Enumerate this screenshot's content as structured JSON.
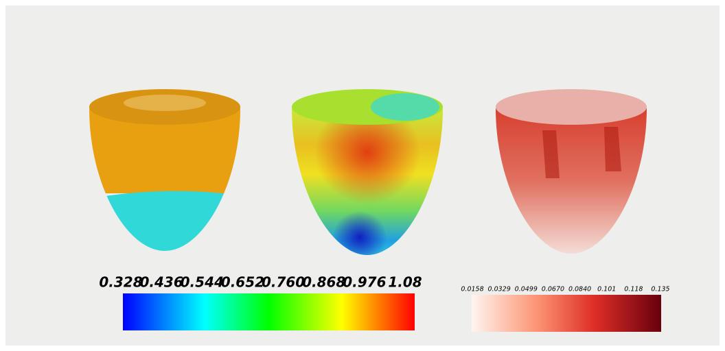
{
  "colorbars": [
    {
      "ticks": [
        "0.328",
        "0.436",
        "0.544",
        "0.652",
        "0.760",
        "0.868",
        "0.976",
        "1.08"
      ]
    },
    {
      "ticks": [
        "0.0158",
        "0.0329",
        "0.0499",
        "0.0670",
        "0.0840",
        "0.101",
        "0.118",
        "0.135"
      ]
    }
  ]
}
